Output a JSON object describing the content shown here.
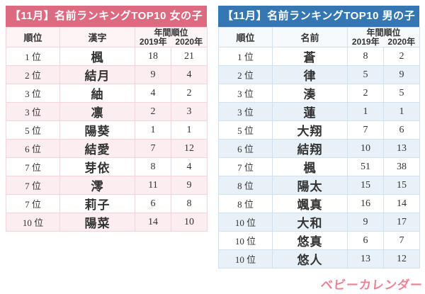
{
  "logo": {
    "text": "ベビーカレンダー",
    "color": "#ee8094"
  },
  "chart_data": [
    {
      "type": "table",
      "id": "girls",
      "title": "【11月】名前ランキングTOP10 女の子",
      "title_bg": "#dc6a80",
      "alt_row_color": "#fcedf0",
      "border_color": "#f3d5db",
      "columns": {
        "rank": "順位",
        "name": "漢字",
        "annual": "年間順位",
        "y2019": "2019年",
        "y2020": "2020年"
      },
      "rows": [
        {
          "rank": "1 位",
          "name": "楓",
          "y2019": "18",
          "y2020": "21"
        },
        {
          "rank": "2 位",
          "name": "結月",
          "y2019": "9",
          "y2020": "4"
        },
        {
          "rank": "3 位",
          "name": "紬",
          "y2019": "4",
          "y2020": "2"
        },
        {
          "rank": "3 位",
          "name": "凛",
          "y2019": "2",
          "y2020": "3"
        },
        {
          "rank": "5 位",
          "name": "陽葵",
          "y2019": "1",
          "y2020": "1"
        },
        {
          "rank": "6 位",
          "name": "結愛",
          "y2019": "7",
          "y2020": "12"
        },
        {
          "rank": "7 位",
          "name": "芽依",
          "y2019": "8",
          "y2020": "4"
        },
        {
          "rank": "7 位",
          "name": "澪",
          "y2019": "11",
          "y2020": "9"
        },
        {
          "rank": "7 位",
          "name": "莉子",
          "y2019": "6",
          "y2020": "8"
        },
        {
          "rank": "10 位",
          "name": "陽菜",
          "y2019": "14",
          "y2020": "10"
        }
      ]
    },
    {
      "type": "table",
      "id": "boys",
      "title": "【11月】名前ランキングTOP10 男の子",
      "title_bg": "#3577b2",
      "alt_row_color": "#e9f1f8",
      "border_color": "#d2dfec",
      "columns": {
        "rank": "順位",
        "name": "名前",
        "annual": "年間順位",
        "y2019": "2019年",
        "y2020": "2020年"
      },
      "rows": [
        {
          "rank": "1 位",
          "name": "蒼",
          "y2019": "8",
          "y2020": "2"
        },
        {
          "rank": "2 位",
          "name": "律",
          "y2019": "5",
          "y2020": "9"
        },
        {
          "rank": "3 位",
          "name": "湊",
          "y2019": "2",
          "y2020": "5"
        },
        {
          "rank": "3 位",
          "name": "蓮",
          "y2019": "1",
          "y2020": "1"
        },
        {
          "rank": "5 位",
          "name": "大翔",
          "y2019": "7",
          "y2020": "6"
        },
        {
          "rank": "6 位",
          "name": "結翔",
          "y2019": "10",
          "y2020": "13"
        },
        {
          "rank": "7 位",
          "name": "楓",
          "y2019": "51",
          "y2020": "38"
        },
        {
          "rank": "8 位",
          "name": "陽太",
          "y2019": "15",
          "y2020": "15"
        },
        {
          "rank": "8 位",
          "name": "颯真",
          "y2019": "16",
          "y2020": "14"
        },
        {
          "rank": "10 位",
          "name": "大和",
          "y2019": "9",
          "y2020": "17"
        },
        {
          "rank": "10 位",
          "name": "悠真",
          "y2019": "6",
          "y2020": "7"
        },
        {
          "rank": "10 位",
          "name": "悠人",
          "y2019": "13",
          "y2020": "12"
        }
      ]
    }
  ]
}
